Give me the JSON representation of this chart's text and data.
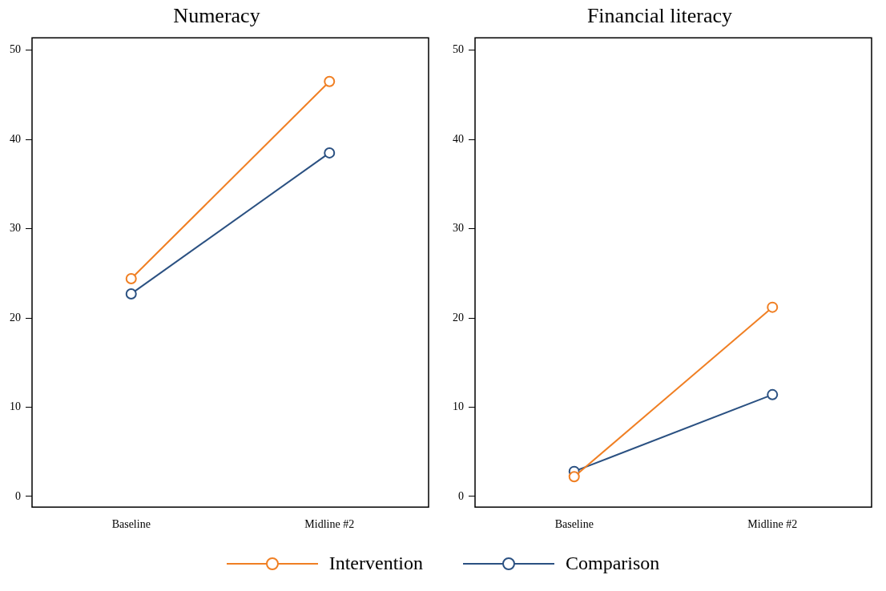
{
  "chart_data": [
    {
      "type": "line",
      "title": "Numeracy",
      "categories": [
        "Baseline",
        "Midline #2"
      ],
      "series": [
        {
          "name": "Intervention",
          "color": "#f07f23",
          "values": [
            24.4,
            46.5
          ]
        },
        {
          "name": "Comparison",
          "color": "#2b5182",
          "values": [
            22.7,
            38.5
          ]
        }
      ],
      "ylim": [
        -1.2,
        51.4
      ],
      "yticks": [
        0,
        10,
        20,
        30,
        40,
        50
      ],
      "grid": false,
      "marker": "circle",
      "legend": "bottom"
    },
    {
      "type": "line",
      "title": "Financial literacy",
      "categories": [
        "Baseline",
        "Midline #2"
      ],
      "series": [
        {
          "color": "#f07f23",
          "values": [
            2.2,
            21.2
          ]
        },
        {
          "color": "#2b5182",
          "values": [
            2.8,
            11.4
          ]
        }
      ],
      "ylim": [
        -1.2,
        51.4
      ],
      "yticks": [
        0,
        10,
        20,
        30,
        40,
        50
      ],
      "grid": false,
      "marker": "circle"
    }
  ]
}
